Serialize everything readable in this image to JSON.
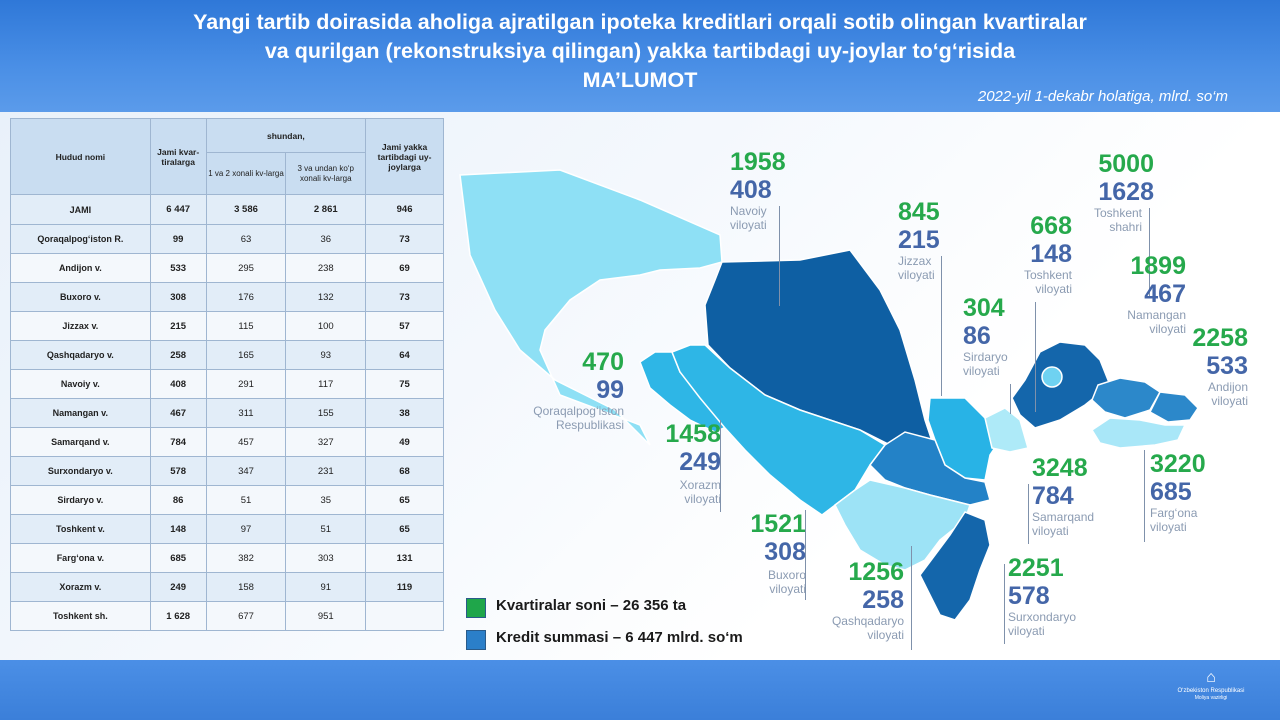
{
  "header": {
    "title_line1": "Yangi tartib doirasida aholiga ajratilgan ipoteka kreditlari orqali sotib olingan kvartiralar",
    "title_line2": "va qurilgan (rekonstruksiya qilingan) yakka tartibdagi uy-joylar to‘g‘risida",
    "title_line3": "MA’LUMOT",
    "subtitle": "2022-yil 1-dekabr holatiga, mlrd. so‘m"
  },
  "table": {
    "col_region": "Hudud nomi",
    "col_total": "Jami kvar-tiralarga",
    "col_group": "shundan,",
    "col_sub1": "1 va 2 xonali kv-larga",
    "col_sub2": "3 va undan ko‘p xonali kv-larga",
    "col_houses": "Jami yakka tartibdagi uy-joylarga",
    "rows": [
      {
        "name": "JAMI",
        "total": "6 447",
        "a": "3 586",
        "b": "2 861",
        "houses": "946"
      },
      {
        "name": "Qoraqalpog‘iston R.",
        "total": "99",
        "a": "63",
        "b": "36",
        "houses": "73"
      },
      {
        "name": "Andijon v.",
        "total": "533",
        "a": "295",
        "b": "238",
        "houses": "69"
      },
      {
        "name": "Buxoro v.",
        "total": "308",
        "a": "176",
        "b": "132",
        "houses": "73"
      },
      {
        "name": "Jizzax v.",
        "total": "215",
        "a": "115",
        "b": "100",
        "houses": "57"
      },
      {
        "name": "Qashqadaryo v.",
        "total": "258",
        "a": "165",
        "b": "93",
        "houses": "64"
      },
      {
        "name": "Navoiy v.",
        "total": "408",
        "a": "291",
        "b": "117",
        "houses": "75"
      },
      {
        "name": "Namangan v.",
        "total": "467",
        "a": "311",
        "b": "155",
        "houses": "38"
      },
      {
        "name": "Samarqand v.",
        "total": "784",
        "a": "457",
        "b": "327",
        "houses": "49"
      },
      {
        "name": "Surxondaryo v.",
        "total": "578",
        "a": "347",
        "b": "231",
        "houses": "68"
      },
      {
        "name": "Sirdaryo v.",
        "total": "86",
        "a": "51",
        "b": "35",
        "houses": "65"
      },
      {
        "name": "Toshkent v.",
        "total": "148",
        "a": "97",
        "b": "51",
        "houses": "65"
      },
      {
        "name": "Farg‘ona v.",
        "total": "685",
        "a": "382",
        "b": "303",
        "houses": "131"
      },
      {
        "name": "Xorazm v.",
        "total": "249",
        "a": "158",
        "b": "91",
        "houses": "119"
      },
      {
        "name": "Toshkent sh.",
        "total": "1 628",
        "a": "677",
        "b": "951",
        "houses": ""
      }
    ]
  },
  "map_labels": {
    "navoiy": {
      "count": "1958",
      "sum": "408",
      "name1": "Navoiy",
      "name2": "viloyati"
    },
    "toshkent_sh": {
      "count": "5000",
      "sum": "1628",
      "name1": "Toshkent",
      "name2": "shahri"
    },
    "jizzax": {
      "count": "845",
      "sum": "215",
      "name1": "Jizzax",
      "name2": "viloyati"
    },
    "toshkent_v": {
      "count": "668",
      "sum": "148",
      "name1": "Toshkent",
      "name2": "viloyati"
    },
    "namangan": {
      "count": "1899",
      "sum": "467",
      "name1": "Namangan",
      "name2": "viloyati"
    },
    "sirdaryo": {
      "count": "304",
      "sum": "86",
      "name1": "Sirdaryo",
      "name2": "viloyati"
    },
    "andijon": {
      "count": "2258",
      "sum": "533",
      "name1": "Andijon",
      "name2": "viloyati"
    },
    "qoraqalpog": {
      "count": "470",
      "sum": "99",
      "name1": "Qoraqalpog‘iston",
      "name2": "Respublikasi"
    },
    "xorazm": {
      "count": "1458",
      "sum": "249",
      "name1": "Xorazm",
      "name2": "viloyati"
    },
    "samarqand": {
      "count": "3248",
      "sum": "784",
      "name1": "Samarqand",
      "name2": "viloyati"
    },
    "fargona": {
      "count": "3220",
      "sum": "685",
      "name1": "Farg‘ona",
      "name2": "viloyati"
    },
    "buxoro": {
      "count": "1521",
      "sum": "308",
      "name1": "Buxoro",
      "name2": "viloyati"
    },
    "qashqadaryo": {
      "count": "1256",
      "sum": "258",
      "name1": "Qashqadaryo",
      "name2": "viloyati"
    },
    "surxondaryo": {
      "count": "2251",
      "sum": "578",
      "name1": "Surxondaryo",
      "name2": "viloyati"
    }
  },
  "legend": {
    "count_label": "Kvartiralar soni –  26 356 ta",
    "sum_label": "Kredit summasi –  6 447 mlrd. so‘m",
    "count_color": "#1fa64a",
    "sum_color": "#2b7fc9"
  },
  "logo": {
    "line1": "O‘zbekiston Respublikasi",
    "line2": "Moliya vazirligi"
  }
}
